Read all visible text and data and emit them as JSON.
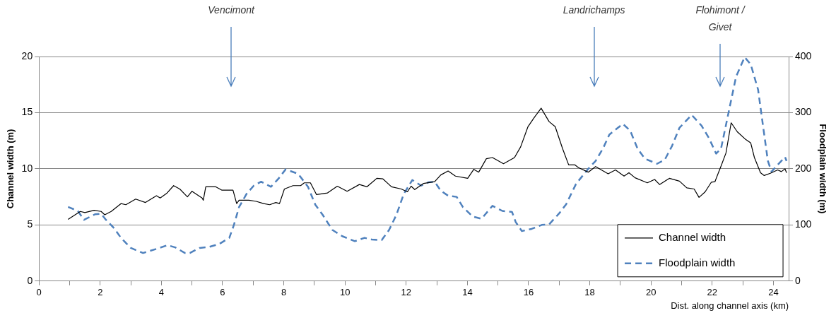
{
  "chart_data": {
    "type": "line",
    "xlabel": "Dist. along channel axis (km)",
    "ylabel": "Channel width (m)",
    "y2label": "Floodplain width (m)",
    "xlim": [
      0,
      24.5
    ],
    "xticks": [
      0,
      {
        "value": 1,
        "label": null
      },
      2,
      {
        "value": 3,
        "label": null
      },
      4,
      {
        "value": 5,
        "label": null
      },
      6,
      {
        "value": 7,
        "label": null
      },
      8,
      {
        "value": 9,
        "label": null
      },
      10,
      {
        "value": 11,
        "label": null
      },
      12,
      {
        "value": 13,
        "label": null
      },
      14,
      {
        "value": 15,
        "label": null
      },
      16,
      {
        "value": 17,
        "label": null
      },
      18,
      {
        "value": 19,
        "label": null
      },
      20,
      {
        "value": 21,
        "label": null
      },
      22,
      {
        "value": 23,
        "label": null
      },
      24
    ],
    "ylim": [
      0,
      20
    ],
    "yticks": [
      0,
      5,
      10,
      15,
      20
    ],
    "y2lim": [
      0,
      400
    ],
    "y2ticks": [
      0,
      100,
      200,
      300,
      400
    ],
    "grid": "y",
    "legend": "bottom right",
    "ref_lines": [
      {
        "axis": "x",
        "value": 6.28,
        "label": "Vencimont",
        "color": "#4a7ebb"
      },
      {
        "axis": "x",
        "value": 18.14,
        "label": "Landrichamps",
        "color": "#4a7ebb"
      },
      {
        "axis": "x",
        "value": 22.26,
        "label": "Flohimont /\nGivet",
        "color": "#4a7ebb"
      }
    ],
    "series": [
      {
        "name": "Channel width",
        "color": "#000000",
        "line_style": "solid",
        "x": [
          0.95,
          1.35,
          1.5,
          1.8,
          2.03,
          2.15,
          2.36,
          2.68,
          2.84,
          3.16,
          3.48,
          3.84,
          3.96,
          4.17,
          4.4,
          4.6,
          4.85,
          5.0,
          5.33,
          5.37,
          5.45,
          5.77,
          5.97,
          6.34,
          6.46,
          6.54,
          6.86,
          7.1,
          7.34,
          7.54,
          7.74,
          7.86,
          8.02,
          8.3,
          8.55,
          8.67,
          8.87,
          9.07,
          9.43,
          9.75,
          10.07,
          10.47,
          10.72,
          11.04,
          11.24,
          11.52,
          11.84,
          12.04,
          12.16,
          12.28,
          12.57,
          12.93,
          13.13,
          13.37,
          13.61,
          14.01,
          14.21,
          14.37,
          14.62,
          14.82,
          15.18,
          15.54,
          15.74,
          15.98,
          16.18,
          16.41,
          16.67,
          16.87,
          17.11,
          17.31,
          17.51,
          17.63,
          17.95,
          18.19,
          18.6,
          18.84,
          19.12,
          19.28,
          19.48,
          19.88,
          20.12,
          20.28,
          20.6,
          20.93,
          21.17,
          21.41,
          21.57,
          21.77,
          21.97,
          22.09,
          22.29,
          22.45,
          22.62,
          22.82,
          23.1,
          23.26,
          23.38,
          23.58,
          23.7,
          23.9,
          24.14,
          24.26,
          24.38,
          24.43
        ],
        "values": [
          5.5,
          6.2,
          6.1,
          6.3,
          6.2,
          5.9,
          6.2,
          6.9,
          6.8,
          7.3,
          7.0,
          7.6,
          7.4,
          7.8,
          8.5,
          8.2,
          7.5,
          8.0,
          7.4,
          7.2,
          8.4,
          8.4,
          8.1,
          8.1,
          6.9,
          7.2,
          7.2,
          7.1,
          6.9,
          6.8,
          7.0,
          6.9,
          8.2,
          8.5,
          8.5,
          8.75,
          8.75,
          7.7,
          7.85,
          8.45,
          8.0,
          8.6,
          8.4,
          9.15,
          9.1,
          8.4,
          8.2,
          7.95,
          8.45,
          8.15,
          8.7,
          8.85,
          9.45,
          9.8,
          9.35,
          9.15,
          9.95,
          9.7,
          10.9,
          11.0,
          10.45,
          11.0,
          11.95,
          13.75,
          14.55,
          15.4,
          14.2,
          13.75,
          11.8,
          10.35,
          10.35,
          10.1,
          9.7,
          10.2,
          9.55,
          9.9,
          9.35,
          9.65,
          9.2,
          8.75,
          9.05,
          8.6,
          9.15,
          8.9,
          8.3,
          8.2,
          7.45,
          7.95,
          8.8,
          8.85,
          10.25,
          11.4,
          14.1,
          13.3,
          12.6,
          12.3,
          11.0,
          9.65,
          9.4,
          9.6,
          9.9,
          9.75,
          10.0,
          9.65
        ]
      },
      {
        "name": "Floodplain width",
        "color": "#4f81bd",
        "line_style": "dashed",
        "axis": "y2",
        "x": [
          0.95,
          1.27,
          1.47,
          1.83,
          2.03,
          2.19,
          2.44,
          2.68,
          3.0,
          3.4,
          3.88,
          4.2,
          4.45,
          4.77,
          4.93,
          5.25,
          5.57,
          5.89,
          6.22,
          6.37,
          6.54,
          6.78,
          7.02,
          7.26,
          7.58,
          7.82,
          8.06,
          8.47,
          8.79,
          9.03,
          9.27,
          9.59,
          9.91,
          10.32,
          10.64,
          10.88,
          11.2,
          11.44,
          11.68,
          11.92,
          12.2,
          12.49,
          12.73,
          12.93,
          13.13,
          13.37,
          13.65,
          13.85,
          14.17,
          14.46,
          14.82,
          15.14,
          15.46,
          15.58,
          15.78,
          16.1,
          16.43,
          16.67,
          16.99,
          17.23,
          17.55,
          17.95,
          18.19,
          18.43,
          18.64,
          19.08,
          19.32,
          19.56,
          19.8,
          20.2,
          20.45,
          20.69,
          20.93,
          21.33,
          21.65,
          21.89,
          22.13,
          22.29,
          22.5,
          22.78,
          23.06,
          23.26,
          23.5,
          23.66,
          23.82,
          23.94,
          24.14,
          24.38,
          24.43
        ],
        "values": [
          132,
          125,
          109,
          119,
          120,
          109,
          95,
          77,
          59,
          50,
          58,
          64,
          60,
          50,
          50,
          59,
          61,
          66,
          77,
          100,
          132,
          155,
          170,
          177,
          168,
          182,
          199,
          191,
          168,
          136,
          118,
          91,
          80,
          71,
          77,
          74,
          73,
          91,
          118,
          155,
          180,
          170,
          176,
          177,
          161,
          152,
          150,
          132,
          115,
          111,
          134,
          125,
          123,
          105,
          89,
          93,
          100,
          101,
          120,
          137,
          173,
          200,
          214,
          236,
          261,
          280,
          268,
          236,
          218,
          209,
          216,
          241,
          273,
          296,
          277,
          255,
          227,
          236,
          291,
          364,
          399,
          386,
          341,
          277,
          214,
          195,
          207,
          221,
          214
        ]
      }
    ]
  }
}
